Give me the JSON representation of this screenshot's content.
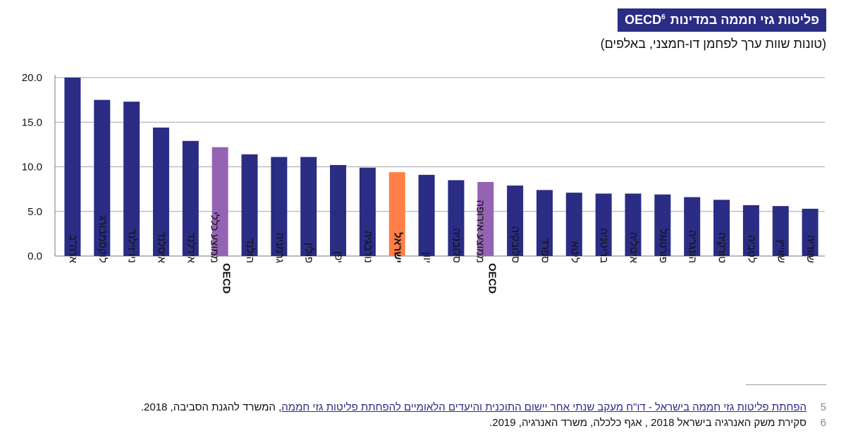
{
  "title": "פליטות גזי חממה במדינות OECD",
  "title_sup": "6",
  "subtitle": "(טונות שוות ערך לפחמן דו-חמצני, באלפים)",
  "colors": {
    "default": "#2b2c84",
    "oecd": "#9563b4",
    "israel": "#ff7f47",
    "grid": "#a6a6a6"
  },
  "chart_data": {
    "type": "bar",
    "title": "פליטות גזי חממה במדינות OECD",
    "ylabel": "(טונות שוות ערך לפחמן דו-חמצני, באלפים)",
    "ylim": [
      0,
      20
    ],
    "yticks": [
      "0.0",
      "5.0",
      "10.0",
      "15.0",
      "20.0"
    ],
    "grid": true,
    "categories": [
      {
        "lines": [
          "ארה\"ב"
        ],
        "value": 20.0,
        "kind": "default"
      },
      {
        "lines": [
          "לוקסמבורג"
        ],
        "value": 17.5,
        "kind": "default"
      },
      {
        "lines": [
          "ניו זילנד"
        ],
        "value": 17.3,
        "kind": "default"
      },
      {
        "lines": [
          "איסלנד"
        ],
        "value": 14.4,
        "kind": "default"
      },
      {
        "lines": [
          "אירלנד"
        ],
        "value": 12.9,
        "kind": "default"
      },
      {
        "lines": [
          "OECD",
          "ממוצע כללי"
        ],
        "value": 12.2,
        "kind": "oecd"
      },
      {
        "lines": [
          "הולנד"
        ],
        "value": 11.4,
        "kind": "default"
      },
      {
        "lines": [
          "גרמניה"
        ],
        "value": 11.1,
        "kind": "default"
      },
      {
        "lines": [
          "פולין"
        ],
        "value": 11.1,
        "kind": "default"
      },
      {
        "lines": [
          "יפן"
        ],
        "value": 10.2,
        "kind": "default"
      },
      {
        "lines": [
          "נורבגיה"
        ],
        "value": 9.9,
        "kind": "default"
      },
      {
        "lines": [
          "ישראל"
        ],
        "value": 9.4,
        "kind": "israel"
      },
      {
        "lines": [
          "יוון"
        ],
        "value": 9.1,
        "kind": "default"
      },
      {
        "lines": [
          "סלובניה"
        ],
        "value": 8.5,
        "kind": "default"
      },
      {
        "lines": [
          "OECD",
          "ממוצע אירופה"
        ],
        "value": 8.3,
        "kind": "oecd"
      },
      {
        "lines": [
          "סלובקיה"
        ],
        "value": 7.9,
        "kind": "default"
      },
      {
        "lines": [
          "ספרד"
        ],
        "value": 7.4,
        "kind": "default"
      },
      {
        "lines": [
          "ליטא"
        ],
        "value": 7.1,
        "kind": "default"
      },
      {
        "lines": [
          "בריטניה"
        ],
        "value": 7.0,
        "kind": "default"
      },
      {
        "lines": [
          "איטליה"
        ],
        "value": 7.0,
        "kind": "default"
      },
      {
        "lines": [
          "פורטוגל"
        ],
        "value": 6.9,
        "kind": "default"
      },
      {
        "lines": [
          "הונגריה"
        ],
        "value": 6.6,
        "kind": "default"
      },
      {
        "lines": [
          "טורקיה"
        ],
        "value": 6.3,
        "kind": "default"
      },
      {
        "lines": [
          "לטביה"
        ],
        "value": 5.7,
        "kind": "default"
      },
      {
        "lines": [
          "שווייץ"
        ],
        "value": 5.6,
        "kind": "default"
      },
      {
        "lines": [
          "שוודיה"
        ],
        "value": 5.3,
        "kind": "default"
      }
    ]
  },
  "footnotes": [
    {
      "num": "5",
      "link": "הפחתת פליטות גזי חממה בישראל - דו\"ח מעקב שנתי אחר יישום התוכנית והיעדים הלאומיים להפחתת פליטות גזי חממה",
      "text": ", המשרד להגנת הסביבה, 2018."
    },
    {
      "num": "6",
      "link": "",
      "text": "סקירת משק האנרגיה בישראל 2018 , אגף כלכלה, משרד האנרגיה, 2019."
    }
  ]
}
